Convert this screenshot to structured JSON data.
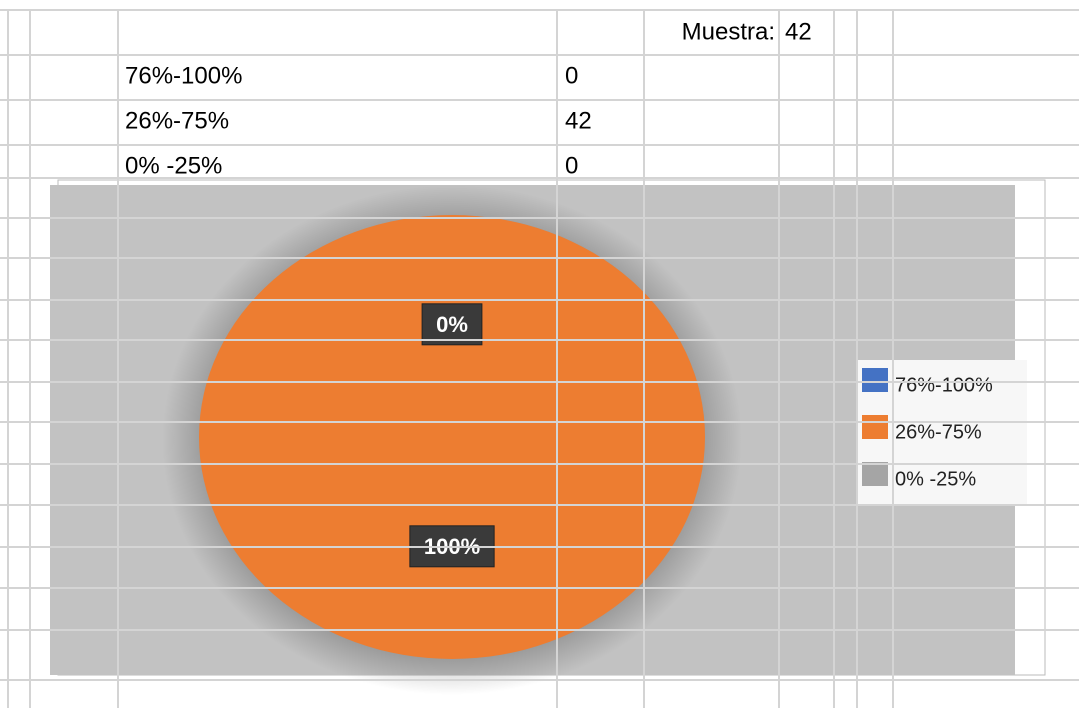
{
  "table": {
    "sample_label": "Muestra:",
    "sample": 42,
    "rows": [
      [
        "76%-100%",
        0
      ],
      [
        "26%-75%",
        42
      ],
      [
        "0% -25%",
        0
      ]
    ]
  },
  "chart_data": {
    "type": "pie",
    "categories": [
      "76%-100%",
      "26%-75%",
      "0% -25%"
    ],
    "values": [
      0,
      100,
      0
    ],
    "value_labels": [
      null,
      "100%",
      "0%"
    ],
    "colors": [
      "#4472c4",
      "#ed7d31",
      "#a5a5a5"
    ],
    "legend": "right"
  }
}
